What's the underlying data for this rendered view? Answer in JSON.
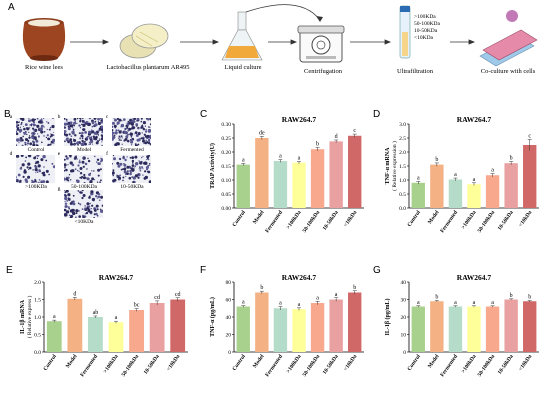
{
  "panel_letters": [
    "A",
    "B",
    "C",
    "D",
    "E",
    "F",
    "G"
  ],
  "workflow": {
    "steps": [
      "Rice wine lees",
      "Lactobacillus plantarum AR495",
      "Liquid culture",
      "Centrifugation",
      "Ultrafiltration",
      "Co-culture with cells"
    ],
    "fractions": [
      ">100KDa",
      "50-100KDa",
      "10-50KDa",
      "<10KDa"
    ]
  },
  "micrographs": {
    "labels": [
      "Control",
      "Model",
      "Fermented",
      ">100KDa",
      "50-100KDa",
      "10-50KDa",
      "<10KDa"
    ],
    "sublabels": [
      "a",
      "b",
      "c",
      "d",
      "e",
      "f",
      "g"
    ]
  },
  "colors": [
    "#a9d18e",
    "#f4b183",
    "#b4dcc8",
    "#ffff99",
    "#f8a88c",
    "#e8a0a0",
    "#d06868"
  ],
  "chart_data": [
    {
      "type": "bar",
      "panel": "C",
      "title": "RAW264.7",
      "ylabel": "TRAP Activity(U)",
      "ylim": [
        0,
        0.3
      ],
      "yticks": [
        "0.00",
        "0.05",
        "0.10",
        "0.15",
        "0.20",
        "0.25",
        "0.30"
      ],
      "categories": [
        "Control",
        "Model",
        "Fermented",
        ">100kDa",
        "50-100kDa",
        "10-50kDa",
        "<10kDa"
      ],
      "values": [
        0.155,
        0.25,
        0.168,
        0.162,
        0.21,
        0.238,
        0.258
      ],
      "errors": [
        0.004,
        0.006,
        0.005,
        0.004,
        0.006,
        0.005,
        0.006
      ],
      "letters": [
        "a",
        "de",
        "a",
        "a",
        "b",
        "d",
        "c"
      ]
    },
    {
      "type": "bar",
      "panel": "D",
      "title": "RAW264.7",
      "ylabel": "TNF-α mRNA",
      "ylabel2": "( Relative expression )",
      "ylim": [
        0,
        3
      ],
      "yticks": [
        "0.0",
        "0.5",
        "1.0",
        "1.5",
        "2.0",
        "2.5",
        "3.0"
      ],
      "categories": [
        "Control",
        "Model",
        "Fermented",
        ">100kDa",
        "50-100kDa",
        "10-50kDa",
        "<10kDa"
      ],
      "values": [
        0.9,
        1.55,
        1.02,
        0.85,
        1.17,
        1.6,
        2.25
      ],
      "errors": [
        0.05,
        0.06,
        0.05,
        0.05,
        0.06,
        0.06,
        0.2
      ],
      "letters": [
        "a",
        "b",
        "a",
        "a",
        "a",
        "b",
        "c"
      ]
    },
    {
      "type": "bar",
      "panel": "E",
      "title": "RAW264.7",
      "ylabel": "IL-1β mRNA",
      "ylabel2": "( Relative express )",
      "ylim": [
        0,
        2
      ],
      "yticks": [
        "0.0",
        "0.5",
        "1.0",
        "1.5",
        "2.0"
      ],
      "categories": [
        "Control",
        "Model",
        "Fermented",
        ">100kDa",
        "50-100kDa",
        "10-50kDa",
        "<10kDa"
      ],
      "values": [
        0.88,
        1.52,
        1.0,
        0.85,
        1.2,
        1.4,
        1.5
      ],
      "errors": [
        0.03,
        0.04,
        0.03,
        0.03,
        0.04,
        0.06,
        0.05
      ],
      "letters": [
        "a",
        "d",
        "ab",
        "a",
        "bc",
        "cd",
        "cd"
      ]
    },
    {
      "type": "bar",
      "panel": "F",
      "title": "RAW264.7",
      "ylabel": "TNF-α (pg/mL)",
      "ylim": [
        0,
        80
      ],
      "yticks": [
        "0",
        "20",
        "40",
        "60",
        "80"
      ],
      "categories": [
        "Control",
        "Model",
        "Fermented",
        ">100kDa",
        "50-100kDa",
        "10-50kDa",
        "<10kDa"
      ],
      "values": [
        52,
        68,
        50,
        49,
        56,
        60,
        68
      ],
      "errors": [
        1,
        1.5,
        2,
        1.5,
        2,
        2,
        2
      ],
      "letters": [
        "a",
        "b",
        "a",
        "a",
        "a",
        "a",
        "b"
      ]
    },
    {
      "type": "bar",
      "panel": "G",
      "title": "RAW264.7",
      "ylabel": "IL-1β (pg/mL)",
      "ylim": [
        0,
        40
      ],
      "yticks": [
        "0",
        "10",
        "20",
        "30",
        "40"
      ],
      "categories": [
        "Control",
        "Model",
        "Fermented",
        ">100kDa",
        "50-100kDa",
        "10-50kDa",
        "<10kDa"
      ],
      "values": [
        26,
        29,
        26,
        26,
        26,
        30,
        29
      ],
      "errors": [
        0.4,
        0.4,
        0.4,
        0.4,
        0.4,
        0.4,
        0.4
      ],
      "letters": [
        "a",
        "b",
        "a",
        "a",
        "a",
        "b",
        "b"
      ]
    }
  ]
}
